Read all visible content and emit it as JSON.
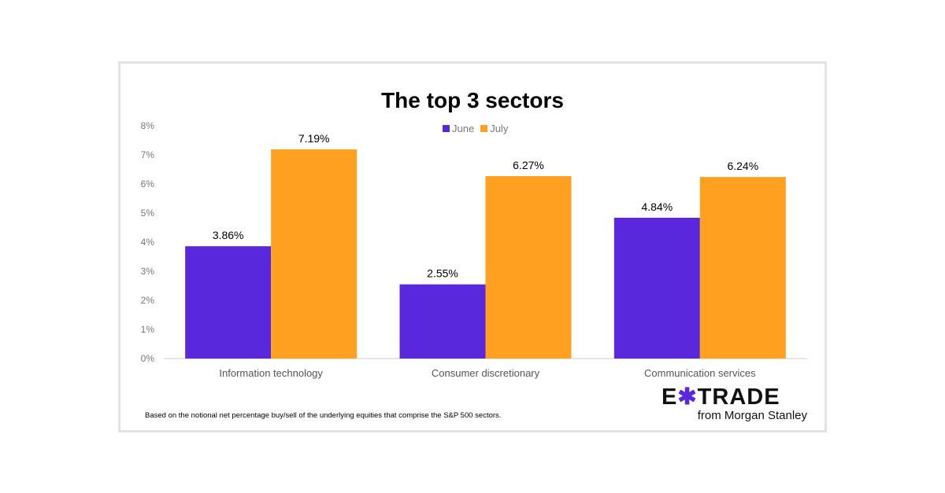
{
  "chart_data": {
    "type": "bar",
    "title": "The top 3 sectors",
    "categories": [
      "Information technology",
      "Consumer discretionary",
      "Communication services"
    ],
    "series": [
      {
        "name": "June",
        "color": "#5a28dc",
        "values": [
          3.86,
          2.55,
          4.84
        ],
        "labels": [
          "3.86%",
          "2.55%",
          "4.84%"
        ]
      },
      {
        "name": "July",
        "color": "#ffa020",
        "values": [
          7.19,
          6.27,
          6.24
        ],
        "labels": [
          "7.19%",
          "6.27%",
          "6.24%"
        ]
      }
    ],
    "ylim": [
      0,
      8
    ],
    "yticks": [
      "0%",
      "1%",
      "2%",
      "3%",
      "4%",
      "5%",
      "6%",
      "7%",
      "8%"
    ],
    "grid": false,
    "legend": "top-center"
  },
  "footnote": "Based on the notional net percentage buy/sell of the underlying equities that comprise the S&P 500 sectors.",
  "logo": {
    "word": "E*TRADE",
    "sub": "from Morgan Stanley"
  }
}
